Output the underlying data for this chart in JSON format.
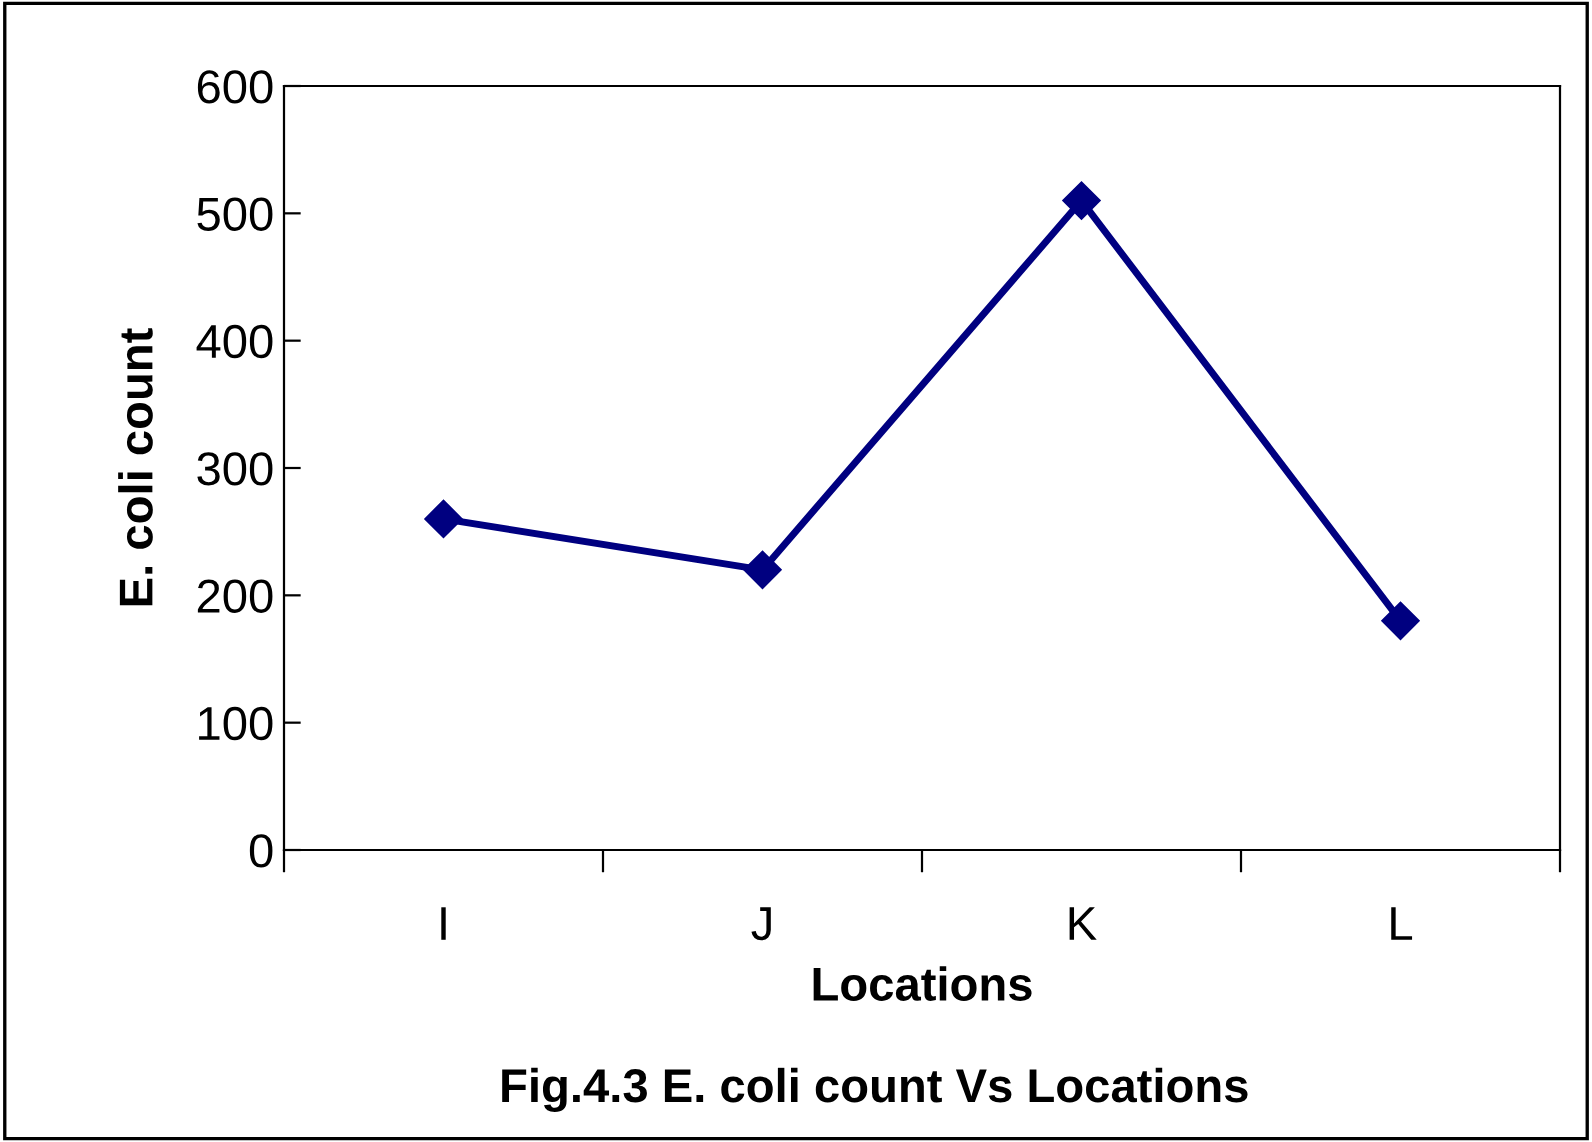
{
  "chart_data": {
    "type": "line",
    "title": "Fig.4.3 E. coli count Vs Locations",
    "xlabel": "Locations",
    "ylabel": "E. coli count",
    "categories": [
      "I",
      "J",
      "K",
      "L"
    ],
    "series": [
      {
        "color": "#000080",
        "values": [
          260,
          220,
          510,
          180
        ]
      }
    ],
    "ylim": [
      0,
      600
    ],
    "yticks": [
      0,
      100,
      200,
      300,
      400,
      500,
      600
    ],
    "marker": "diamond",
    "line_style": "solid",
    "grid": false,
    "legend": false
  }
}
